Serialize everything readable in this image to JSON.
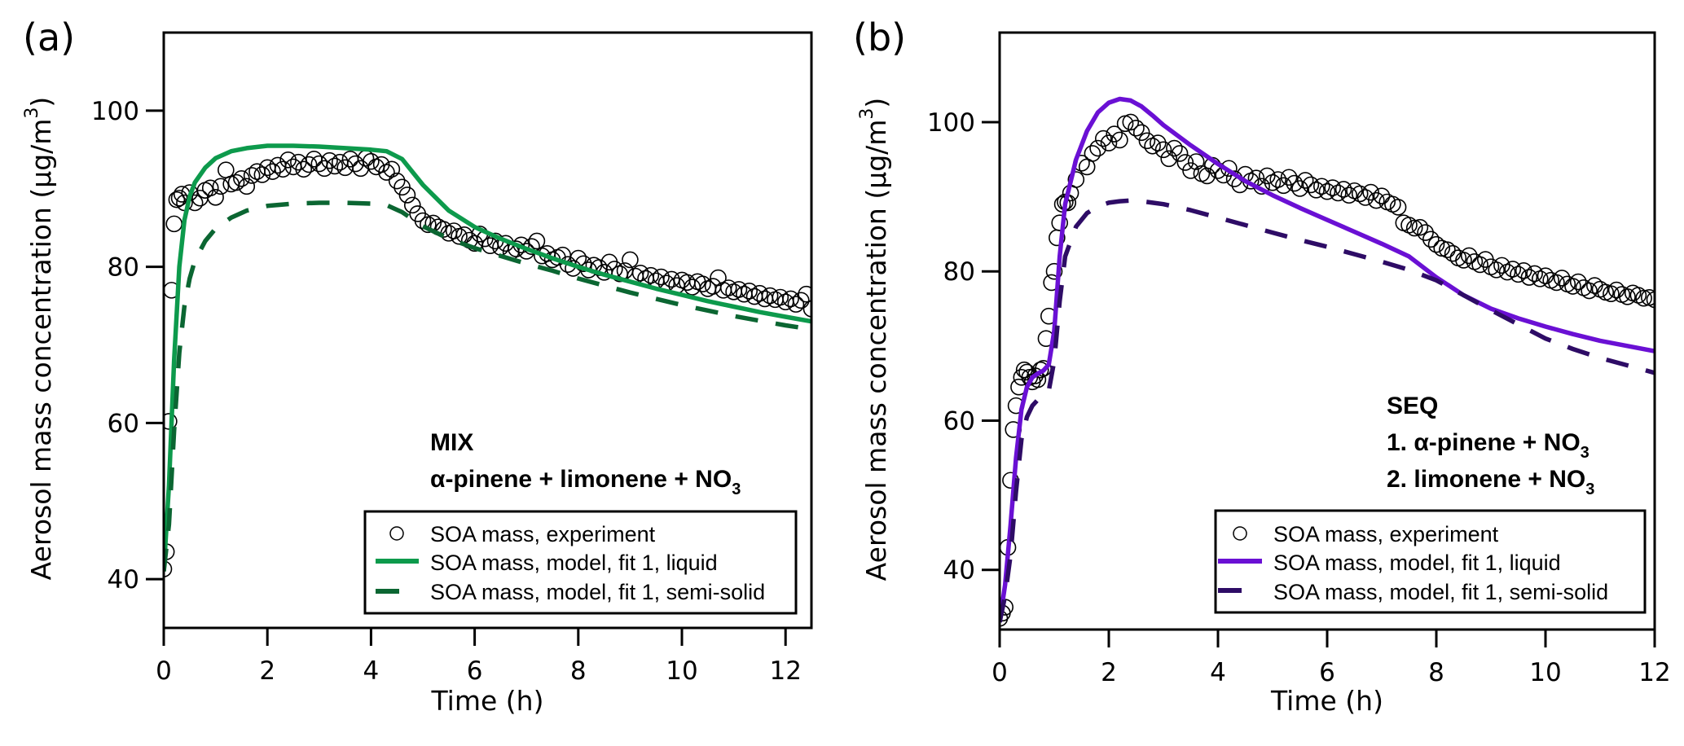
{
  "chart_data": [
    {
      "type": "scatter",
      "panel_label": "(a)",
      "title": "",
      "xlabel": "Time (h)",
      "ylabel": "Aerosol mass concentration (µg/m³)",
      "ylabel_parts": {
        "main": "Aerosol mass concentration (µg/m",
        "sup": "3",
        "close": ")"
      },
      "xlim": [
        0,
        12.5
      ],
      "ylim": [
        33.75,
        110
      ],
      "xticks": [
        0,
        2,
        4,
        6,
        8,
        10,
        12
      ],
      "yticks": [
        40,
        60,
        80,
        100
      ],
      "grid": false,
      "annotation": {
        "line1": "MIX",
        "line2": "α-pinene + limonene + NO",
        "line2_sub": "3"
      },
      "legend": {
        "placement": "bottom-right",
        "entries": [
          {
            "label": "SOA mass, experiment",
            "marker": "open-circle"
          },
          {
            "label": "SOA mass, model, fit 1, liquid",
            "marker": "solid-line"
          },
          {
            "label": "SOA mass, model, fit 1, semi-solid",
            "marker": "dashed-line"
          }
        ]
      },
      "colors": {
        "liquid": "#0d9a4c",
        "semisolid": "#0b6632",
        "marker": "#000000"
      },
      "series": [
        {
          "name": "SOA mass, experiment",
          "kind": "points",
          "x": [
            0.0,
            0.05,
            0.1,
            0.15,
            0.2,
            0.25,
            0.3,
            0.35,
            0.4,
            0.5,
            0.6,
            0.7,
            0.8,
            0.9,
            1.0,
            1.1,
            1.2,
            1.3,
            1.4,
            1.5,
            1.6,
            1.7,
            1.8,
            1.9,
            2.0,
            2.1,
            2.2,
            2.3,
            2.4,
            2.5,
            2.6,
            2.7,
            2.8,
            2.9,
            3.0,
            3.1,
            3.2,
            3.3,
            3.4,
            3.5,
            3.6,
            3.7,
            3.8,
            3.9,
            4.0,
            4.1,
            4.2,
            4.3,
            4.4,
            4.5,
            4.6,
            4.7,
            4.8,
            4.9,
            5.0,
            5.1,
            5.2,
            5.3,
            5.4,
            5.5,
            5.6,
            5.7,
            5.8,
            5.9,
            6.0,
            6.1,
            6.2,
            6.3,
            6.4,
            6.5,
            6.6,
            6.7,
            6.8,
            6.9,
            7.0,
            7.1,
            7.2,
            7.3,
            7.4,
            7.5,
            7.6,
            7.7,
            7.8,
            7.9,
            8.0,
            8.1,
            8.2,
            8.3,
            8.4,
            8.5,
            8.6,
            8.7,
            8.8,
            8.9,
            9.0,
            9.1,
            9.2,
            9.3,
            9.4,
            9.5,
            9.6,
            9.7,
            9.8,
            9.9,
            10.0,
            10.1,
            10.2,
            10.3,
            10.4,
            10.5,
            10.6,
            10.7,
            10.8,
            10.9,
            11.0,
            11.1,
            11.2,
            11.3,
            11.4,
            11.5,
            11.6,
            11.7,
            11.8,
            11.9,
            12.0,
            12.1,
            12.2,
            12.3,
            12.4,
            12.5
          ],
          "y": [
            41.3,
            43.5,
            60.2,
            77.0,
            85.5,
            88.6,
            88.8,
            89.3,
            88.2,
            89.5,
            88.2,
            88.8,
            89.8,
            90.1,
            88.9,
            90.3,
            92.4,
            90.6,
            90.8,
            91.3,
            90.3,
            91.7,
            92.2,
            91.8,
            92.7,
            92.2,
            93.0,
            92.5,
            93.7,
            92.8,
            93.4,
            92.5,
            93.1,
            93.8,
            93.2,
            92.6,
            93.6,
            92.9,
            93.4,
            92.7,
            93.8,
            93.2,
            92.6,
            93.9,
            93.5,
            92.8,
            93.1,
            92.1,
            92.5,
            91.0,
            90.2,
            89.2,
            87.9,
            86.8,
            85.9,
            85.4,
            85.6,
            85.1,
            84.8,
            84.3,
            84.6,
            83.9,
            84.1,
            83.4,
            83.0,
            84.2,
            83.6,
            82.7,
            83.3,
            82.5,
            83.0,
            81.9,
            82.3,
            82.8,
            82.0,
            82.6,
            83.3,
            81.4,
            81.7,
            80.9,
            81.2,
            81.5,
            80.3,
            79.8,
            81.1,
            80.4,
            79.6,
            80.2,
            79.9,
            79.3,
            80.6,
            79.7,
            79.1,
            79.5,
            80.9,
            78.8,
            79.2,
            78.5,
            78.9,
            78.2,
            78.7,
            77.9,
            78.4,
            77.6,
            78.3,
            78.0,
            77.4,
            78.1,
            77.8,
            77.2,
            77.5,
            78.6,
            77.0,
            77.3,
            76.8,
            77.1,
            76.5,
            76.9,
            76.2,
            76.6,
            75.9,
            76.3,
            75.8,
            76.1,
            75.5,
            75.9,
            75.2,
            75.7,
            76.5,
            74.6
          ]
        },
        {
          "name": "SOA mass, model, fit 1, liquid",
          "kind": "line",
          "x": [
            0.0,
            0.1,
            0.2,
            0.3,
            0.4,
            0.5,
            0.6,
            0.8,
            1.0,
            1.3,
            1.6,
            2.0,
            2.5,
            3.0,
            3.5,
            4.0,
            4.3,
            4.6,
            5.0,
            5.5,
            6.0,
            6.5,
            7.0,
            7.5,
            8.0,
            8.5,
            9.0,
            9.5,
            10.0,
            10.5,
            11.0,
            11.5,
            12.0,
            12.5
          ],
          "y": [
            41.0,
            52.0,
            68.0,
            80.0,
            86.0,
            89.0,
            90.8,
            92.7,
            93.9,
            94.8,
            95.2,
            95.5,
            95.5,
            95.4,
            95.2,
            95.0,
            94.8,
            93.8,
            90.5,
            87.2,
            85.1,
            83.6,
            82.3,
            81.1,
            80.0,
            79.0,
            78.1,
            77.2,
            76.4,
            75.6,
            74.9,
            74.2,
            73.6,
            73.0
          ]
        },
        {
          "name": "SOA mass, model, fit 1, semi-solid",
          "kind": "dashed-line",
          "x": [
            0.0,
            0.1,
            0.2,
            0.3,
            0.4,
            0.5,
            0.6,
            0.8,
            1.0,
            1.3,
            1.6,
            2.0,
            2.5,
            3.0,
            3.5,
            4.0,
            4.3,
            4.6,
            5.0,
            5.5,
            6.0,
            6.5,
            7.0,
            7.5,
            8.0,
            8.5,
            9.0,
            9.5,
            10.0,
            10.5,
            11.0,
            11.5,
            12.0,
            12.5
          ],
          "y": [
            41.0,
            47.0,
            59.0,
            69.0,
            75.0,
            78.5,
            80.8,
            83.3,
            84.9,
            86.3,
            87.2,
            87.8,
            88.1,
            88.2,
            88.2,
            88.1,
            87.9,
            87.0,
            85.2,
            83.6,
            82.4,
            81.4,
            80.4,
            79.5,
            78.5,
            77.6,
            76.7,
            75.9,
            75.1,
            74.4,
            73.7,
            73.1,
            72.5,
            72.0
          ]
        }
      ]
    },
    {
      "type": "scatter",
      "panel_label": "(b)",
      "title": "",
      "xlabel": "Time (h)",
      "ylabel": "Aerosol mass concentration (µg/m³)",
      "ylabel_parts": {
        "main": "Aerosol mass concentration (µg/m",
        "sup": "3",
        "close": ")"
      },
      "xlim": [
        0,
        12
      ],
      "ylim": [
        32,
        112
      ],
      "xticks": [
        0,
        2,
        4,
        6,
        8,
        10,
        12
      ],
      "yticks": [
        40,
        60,
        80,
        100
      ],
      "grid": false,
      "annotation": {
        "line1": "SEQ",
        "line2": "1.  α-pinene + NO",
        "line2_sub": "3",
        "line3": "2.  limonene + NO",
        "line3_sub": "3"
      },
      "legend": {
        "placement": "bottom-right",
        "entries": [
          {
            "label": "SOA mass, experiment",
            "marker": "open-circle"
          },
          {
            "label": "SOA mass, model, fit 1, liquid",
            "marker": "solid-line"
          },
          {
            "label": "SOA mass, model, fit 1, semi-solid",
            "marker": "dashed-line"
          }
        ]
      },
      "colors": {
        "liquid": "#6a10d4",
        "semisolid": "#2e0c66",
        "marker": "#000000"
      },
      "series": [
        {
          "name": "SOA mass, experiment",
          "kind": "points",
          "x": [
            0.0,
            0.05,
            0.1,
            0.15,
            0.2,
            0.25,
            0.3,
            0.35,
            0.4,
            0.45,
            0.5,
            0.55,
            0.6,
            0.65,
            0.7,
            0.75,
            0.8,
            0.85,
            0.9,
            0.95,
            1.0,
            1.05,
            1.1,
            1.15,
            1.2,
            1.25,
            1.3,
            1.4,
            1.5,
            1.6,
            1.7,
            1.8,
            1.9,
            2.0,
            2.1,
            2.2,
            2.3,
            2.4,
            2.5,
            2.6,
            2.7,
            2.8,
            2.9,
            3.0,
            3.1,
            3.2,
            3.3,
            3.4,
            3.5,
            3.6,
            3.7,
            3.8,
            3.9,
            4.0,
            4.1,
            4.2,
            4.3,
            4.4,
            4.5,
            4.6,
            4.7,
            4.8,
            4.9,
            5.0,
            5.1,
            5.2,
            5.3,
            5.4,
            5.5,
            5.6,
            5.7,
            5.8,
            5.9,
            6.0,
            6.1,
            6.2,
            6.3,
            6.4,
            6.5,
            6.6,
            6.7,
            6.8,
            6.9,
            7.0,
            7.1,
            7.2,
            7.3,
            7.4,
            7.5,
            7.6,
            7.7,
            7.8,
            7.9,
            8.0,
            8.1,
            8.2,
            8.3,
            8.4,
            8.5,
            8.6,
            8.7,
            8.8,
            8.9,
            9.0,
            9.1,
            9.2,
            9.3,
            9.4,
            9.5,
            9.6,
            9.7,
            9.8,
            9.9,
            10.0,
            10.1,
            10.2,
            10.3,
            10.4,
            10.5,
            10.6,
            10.7,
            10.8,
            10.9,
            11.0,
            11.1,
            11.2,
            11.3,
            11.4,
            11.5,
            11.6,
            11.7,
            11.8,
            11.9,
            12.0
          ],
          "y": [
            33.5,
            34.2,
            35.0,
            43.0,
            52.0,
            58.8,
            62.0,
            64.5,
            65.8,
            66.8,
            66.5,
            65.8,
            65.2,
            66.0,
            65.5,
            66.8,
            67.0,
            71.0,
            74.0,
            78.5,
            80.0,
            84.5,
            86.5,
            89.0,
            89.3,
            89.2,
            90.5,
            92.3,
            94.5,
            94.0,
            95.8,
            96.5,
            97.8,
            97.2,
            98.4,
            97.6,
            99.8,
            100.0,
            99.2,
            98.6,
            97.5,
            96.8,
            97.2,
            96.3,
            95.1,
            96.5,
            95.8,
            94.6,
            93.5,
            94.7,
            93.1,
            92.8,
            94.2,
            93.5,
            92.9,
            93.8,
            92.4,
            91.6,
            93.0,
            92.1,
            92.5,
            91.4,
            92.8,
            91.9,
            92.3,
            91.5,
            92.6,
            91.8,
            91.1,
            92.2,
            91.6,
            90.9,
            91.4,
            90.7,
            91.2,
            90.5,
            91.0,
            90.2,
            90.8,
            90.4,
            89.9,
            90.6,
            89.5,
            90.1,
            89.3,
            89.0,
            88.6,
            86.5,
            86.2,
            85.8,
            85.9,
            85.2,
            84.3,
            83.6,
            83.1,
            82.9,
            82.4,
            81.8,
            81.5,
            82.1,
            81.3,
            80.9,
            81.6,
            80.6,
            80.2,
            80.8,
            79.9,
            80.3,
            79.6,
            80.1,
            79.2,
            79.7,
            79.0,
            79.4,
            78.8,
            78.5,
            79.1,
            78.3,
            78.0,
            78.6,
            77.8,
            77.4,
            78.1,
            77.6,
            77.2,
            77.0,
            77.5,
            76.9,
            76.6,
            77.1,
            76.8,
            76.4,
            76.5,
            76.2
          ]
        },
        {
          "name": "SOA mass, model, fit 1, liquid",
          "kind": "line",
          "x": [
            0.0,
            0.1,
            0.2,
            0.3,
            0.4,
            0.5,
            0.6,
            0.7,
            0.8,
            0.9,
            1.0,
            1.1,
            1.2,
            1.4,
            1.6,
            1.8,
            2.0,
            2.2,
            2.4,
            2.6,
            2.8,
            3.0,
            3.5,
            4.0,
            4.5,
            5.0,
            5.5,
            6.0,
            6.5,
            7.0,
            7.5,
            8.0,
            8.5,
            9.0,
            9.5,
            10.0,
            10.5,
            11.0,
            11.5,
            12.0
          ],
          "y": [
            33.0,
            38.0,
            46.0,
            55.0,
            61.5,
            64.5,
            65.8,
            66.3,
            66.7,
            67.5,
            72.0,
            82.0,
            89.0,
            95.0,
            98.8,
            101.3,
            102.6,
            103.1,
            102.9,
            102.1,
            100.9,
            99.6,
            96.9,
            94.4,
            92.1,
            90.2,
            88.5,
            86.9,
            85.3,
            83.7,
            82.0,
            79.2,
            76.8,
            75.0,
            73.7,
            72.6,
            71.6,
            70.7,
            70.0,
            69.3
          ]
        },
        {
          "name": "SOA mass, model, fit 1, semi-solid",
          "kind": "dashed-line",
          "x": [
            0.0,
            0.1,
            0.2,
            0.3,
            0.4,
            0.5,
            0.6,
            0.7,
            0.8,
            0.9,
            1.0,
            1.1,
            1.2,
            1.4,
            1.6,
            1.8,
            2.0,
            2.2,
            2.4,
            2.6,
            2.8,
            3.0,
            3.5,
            4.0,
            4.5,
            5.0,
            5.5,
            6.0,
            6.5,
            7.0,
            7.5,
            8.0,
            8.5,
            9.0,
            9.5,
            10.0,
            10.5,
            11.0,
            11.5,
            12.0
          ],
          "y": [
            33.0,
            36.5,
            42.0,
            50.5,
            57.5,
            60.5,
            62.0,
            62.8,
            63.3,
            64.0,
            68.0,
            76.0,
            82.0,
            86.0,
            87.8,
            88.7,
            89.2,
            89.4,
            89.5,
            89.4,
            89.2,
            89.0,
            88.2,
            87.2,
            86.2,
            85.2,
            84.2,
            83.3,
            82.3,
            81.3,
            80.2,
            78.8,
            76.8,
            74.8,
            72.9,
            71.0,
            69.6,
            68.4,
            67.4,
            66.4
          ]
        }
      ]
    }
  ]
}
